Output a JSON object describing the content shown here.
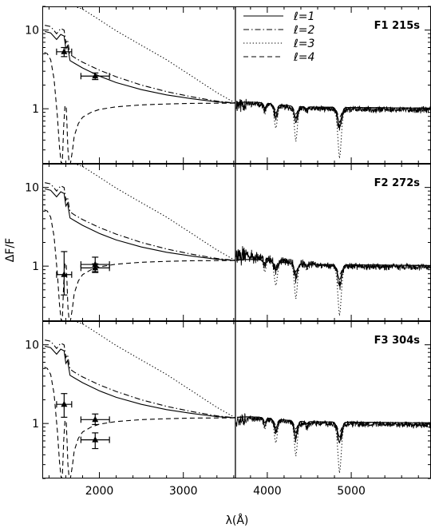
{
  "chart_data": {
    "type": "line",
    "figure": {
      "xlabel": "λ(Å)",
      "ylabel": "ΔF/F",
      "x_scale": "linear",
      "y_scale": "log",
      "xlim": [
        1320,
        5950
      ],
      "ylim": [
        0.2,
        20
      ],
      "shared_x_ticks": [
        2000,
        3000,
        4000,
        5000
      ],
      "x_tick_labels": [
        "2000",
        "3000",
        "4000",
        "5000"
      ],
      "y_ticks": [
        1,
        10
      ],
      "y_tick_labels": [
        "1",
        "10"
      ],
      "boundary_line_x": 3620,
      "legend_position": "top-center of first panel",
      "legend_entries": [
        {
          "label": "ℓ=1",
          "style": "solid"
        },
        {
          "label": "ℓ=2",
          "style": "dash-dot"
        },
        {
          "label": "ℓ=3",
          "style": "dotted"
        },
        {
          "label": "ℓ=4",
          "style": "dashed"
        }
      ]
    },
    "panels": [
      {
        "label": "F1 215s",
        "series": [
          {
            "name": "ℓ=1",
            "style": "solid",
            "x": [
              1350,
              1420,
              1490,
              1540,
              1580,
              1600,
              1620,
              1650,
              1700,
              1800,
              2000,
              2200,
              2500,
              2800,
              3100,
              3400,
              3620
            ],
            "y": [
              9.6,
              9.2,
              7.6,
              8.8,
              8.4,
              5.8,
              6.3,
              4.1,
              3.8,
              3.3,
              2.6,
              2.15,
              1.75,
              1.5,
              1.34,
              1.22,
              1.18
            ]
          },
          {
            "name": "ℓ=2",
            "style": "dash-dot",
            "x": [
              1350,
              1420,
              1490,
              1540,
              1580,
              1600,
              1620,
              1650,
              1700,
              1800,
              2000,
              2200,
              2500,
              2800,
              3100,
              3400,
              3620
            ],
            "y": [
              11.5,
              11.1,
              9.0,
              10.5,
              10.0,
              6.9,
              7.5,
              4.9,
              4.5,
              3.9,
              3.1,
              2.55,
              2.0,
              1.65,
              1.42,
              1.25,
              1.18
            ]
          },
          {
            "name": "ℓ=3",
            "style": "dotted",
            "x": [
              1700,
              1800,
              2000,
              2200,
              2500,
              2800,
              3100,
              3400,
              3620
            ],
            "y": [
              22,
              18.5,
              13.5,
              9.8,
              6.4,
              4.2,
              2.6,
              1.6,
              1.18
            ]
          },
          {
            "name": "ℓ=4",
            "style": "dashed",
            "x": [
              1345,
              1380,
              1420,
              1460,
              1500,
              1525,
              1545,
              1560,
              1575,
              1590,
              1605,
              1615,
              1625,
              1640,
              1655,
              1680,
              1700,
              1750,
              1800,
              1900,
              2000,
              2200,
              2500,
              2800,
              3100,
              3620
            ],
            "y": [
              5.2,
              5.0,
              4.2,
              2.4,
              0.8,
              0.32,
              0.2,
              0.22,
              0.6,
              1.1,
              1.05,
              0.6,
              0.3,
              0.18,
              0.2,
              0.3,
              0.45,
              0.65,
              0.78,
              0.9,
              0.98,
              1.06,
              1.12,
              1.15,
              1.17,
              1.18
            ]
          }
        ],
        "points": [
          {
            "x": 1580,
            "y": 5.3,
            "xerr": 90,
            "yerr_low": 0.7,
            "yerr_high": 0.7
          },
          {
            "x": 1950,
            "y": 2.6,
            "xerr": 170,
            "yerr_low": 0.25,
            "yerr_high": 0.25
          }
        ],
        "spectrum_seed": 11,
        "spectrum_offset": 0.0
      },
      {
        "label": "F2 272s",
        "series": [
          {
            "name": "ℓ=1",
            "style": "solid",
            "x": [
              1350,
              1420,
              1490,
              1540,
              1580,
              1600,
              1620,
              1650,
              1700,
              1800,
              2000,
              2200,
              2500,
              2800,
              3100,
              3400,
              3620
            ],
            "y": [
              9.6,
              9.2,
              7.6,
              8.8,
              8.4,
              5.8,
              6.3,
              4.1,
              3.8,
              3.3,
              2.6,
              2.15,
              1.75,
              1.5,
              1.34,
              1.22,
              1.18
            ]
          },
          {
            "name": "ℓ=2",
            "style": "dash-dot",
            "x": [
              1350,
              1420,
              1490,
              1540,
              1580,
              1600,
              1620,
              1650,
              1700,
              1800,
              2000,
              2200,
              2500,
              2800,
              3100,
              3400,
              3620
            ],
            "y": [
              11.5,
              11.1,
              9.0,
              10.5,
              10.0,
              6.9,
              7.5,
              4.9,
              4.5,
              3.9,
              3.1,
              2.55,
              2.0,
              1.65,
              1.42,
              1.25,
              1.18
            ]
          },
          {
            "name": "ℓ=3",
            "style": "dotted",
            "x": [
              1700,
              1800,
              2000,
              2200,
              2500,
              2800,
              3100,
              3400,
              3620
            ],
            "y": [
              22,
              18.5,
              13.5,
              9.8,
              6.4,
              4.2,
              2.6,
              1.6,
              1.18
            ]
          },
          {
            "name": "ℓ=4",
            "style": "dashed",
            "x": [
              1345,
              1380,
              1420,
              1460,
              1500,
              1525,
              1545,
              1560,
              1575,
              1590,
              1605,
              1615,
              1625,
              1640,
              1655,
              1680,
              1700,
              1750,
              1800,
              1900,
              2000,
              2200,
              2500,
              2800,
              3100,
              3620
            ],
            "y": [
              5.2,
              5.0,
              4.2,
              2.4,
              0.8,
              0.32,
              0.2,
              0.22,
              0.6,
              1.1,
              1.05,
              0.6,
              0.3,
              0.18,
              0.2,
              0.3,
              0.45,
              0.65,
              0.78,
              0.9,
              0.98,
              1.06,
              1.12,
              1.15,
              1.17,
              1.18
            ]
          }
        ],
        "points": [
          {
            "x": 1580,
            "y": 0.78,
            "xerr": 90,
            "yerr_low": 0.35,
            "yerr_high": 0.75
          },
          {
            "x": 1950,
            "y": 1.05,
            "xerr": 170,
            "yerr_low": 0.2,
            "yerr_high": 0.25
          },
          {
            "x": 1950,
            "y": 0.95,
            "xerr": 170,
            "yerr_low": 0.12,
            "yerr_high": 0.12
          }
        ],
        "spectrum_seed": 23,
        "spectrum_offset": 0.15
      },
      {
        "label": "F3 304s",
        "series": [
          {
            "name": "ℓ=1",
            "style": "solid",
            "x": [
              1350,
              1420,
              1490,
              1540,
              1580,
              1600,
              1620,
              1650,
              1700,
              1800,
              2000,
              2200,
              2500,
              2800,
              3100,
              3400,
              3620
            ],
            "y": [
              9.6,
              9.2,
              7.6,
              8.8,
              8.4,
              5.8,
              6.3,
              4.1,
              3.8,
              3.3,
              2.6,
              2.15,
              1.75,
              1.5,
              1.34,
              1.22,
              1.18
            ]
          },
          {
            "name": "ℓ=2",
            "style": "dash-dot",
            "x": [
              1350,
              1420,
              1490,
              1540,
              1580,
              1600,
              1620,
              1650,
              1700,
              1800,
              2000,
              2200,
              2500,
              2800,
              3100,
              3400,
              3620
            ],
            "y": [
              11.5,
              11.1,
              9.0,
              10.5,
              10.0,
              6.9,
              7.5,
              4.9,
              4.5,
              3.9,
              3.1,
              2.55,
              2.0,
              1.65,
              1.42,
              1.25,
              1.18
            ]
          },
          {
            "name": "ℓ=3",
            "style": "dotted",
            "x": [
              1700,
              1800,
              2000,
              2200,
              2500,
              2800,
              3100,
              3400,
              3620
            ],
            "y": [
              22,
              18.5,
              13.5,
              9.8,
              6.4,
              4.2,
              2.6,
              1.6,
              1.18
            ]
          },
          {
            "name": "ℓ=4",
            "style": "dashed",
            "x": [
              1345,
              1380,
              1420,
              1460,
              1500,
              1525,
              1545,
              1560,
              1575,
              1590,
              1605,
              1615,
              1625,
              1640,
              1655,
              1680,
              1700,
              1750,
              1800,
              1900,
              2000,
              2200,
              2500,
              2800,
              3100,
              3620
            ],
            "y": [
              5.2,
              5.0,
              4.2,
              2.4,
              0.8,
              0.32,
              0.2,
              0.22,
              0.6,
              1.1,
              1.05,
              0.6,
              0.3,
              0.18,
              0.2,
              0.3,
              0.45,
              0.65,
              0.78,
              0.9,
              0.98,
              1.06,
              1.12,
              1.15,
              1.17,
              1.18
            ]
          }
        ],
        "points": [
          {
            "x": 1580,
            "y": 1.75,
            "xerr": 90,
            "yerr_low": 0.55,
            "yerr_high": 0.65
          },
          {
            "x": 1950,
            "y": 1.12,
            "xerr": 170,
            "yerr_low": 0.15,
            "yerr_high": 0.2
          },
          {
            "x": 1950,
            "y": 0.62,
            "xerr": 170,
            "yerr_low": 0.14,
            "yerr_high": 0.14
          }
        ],
        "spectrum_seed": 37,
        "spectrum_offset": 0.0
      }
    ]
  }
}
